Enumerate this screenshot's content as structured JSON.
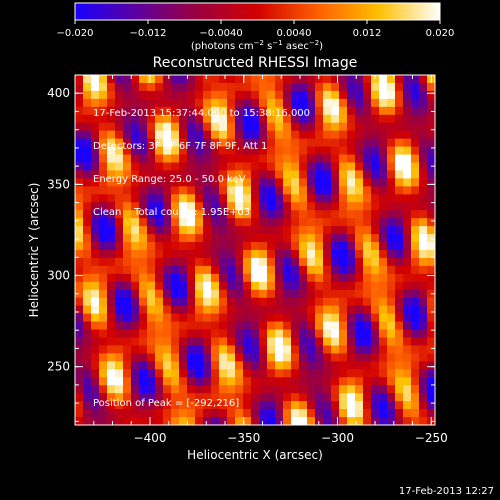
{
  "colorbar": {
    "ticks": [
      "−0.020",
      "−0.012",
      "−0.0040",
      "0.0040",
      "0.012",
      "0.020"
    ],
    "tick_values": [
      -0.02,
      -0.012,
      -0.004,
      0.004,
      0.012,
      0.02
    ],
    "unit_parts": [
      "(photons cm",
      "−2",
      " s",
      "−1",
      " asec",
      "−2",
      ")"
    ],
    "colors": [
      "#1a00ff",
      "#5a009f",
      "#9a003f",
      "#d20000",
      "#ff6000",
      "#ffc000",
      "#ffffff"
    ]
  },
  "chart_data": {
    "type": "heatmap",
    "title": "Reconstructed RHESSI Image",
    "xlabel": "Heliocentric X (arcsec)",
    "ylabel": "Heliocentric Y (arcsec)",
    "xlim": [
      -440,
      -248
    ],
    "ylim": [
      218,
      410
    ],
    "x_ticks": [
      -400,
      -350,
      -300,
      -250
    ],
    "x_tick_labels": [
      "−400",
      "−350",
      "−300",
      "−250"
    ],
    "y_ticks": [
      250,
      300,
      350,
      400
    ],
    "y_tick_labels": [
      "250",
      "300",
      "350",
      "400"
    ],
    "color_range": [
      -0.02,
      0.02
    ],
    "peak_position": [
      -292,
      216
    ],
    "annotations": [
      "17-Feb-2013 15:37:44.000 to 15:38:16.000",
      "Detectors: 3F 5F 6F 7F 8F 9F, Att 1",
      "Energy Range: 25.0 - 50.0 keV",
      "Clean    Total counts: 1.95E+03"
    ],
    "peak_label": "Position of Peak = [-292,216]"
  },
  "footer": {
    "date": "17-Feb-2013 12:27"
  }
}
